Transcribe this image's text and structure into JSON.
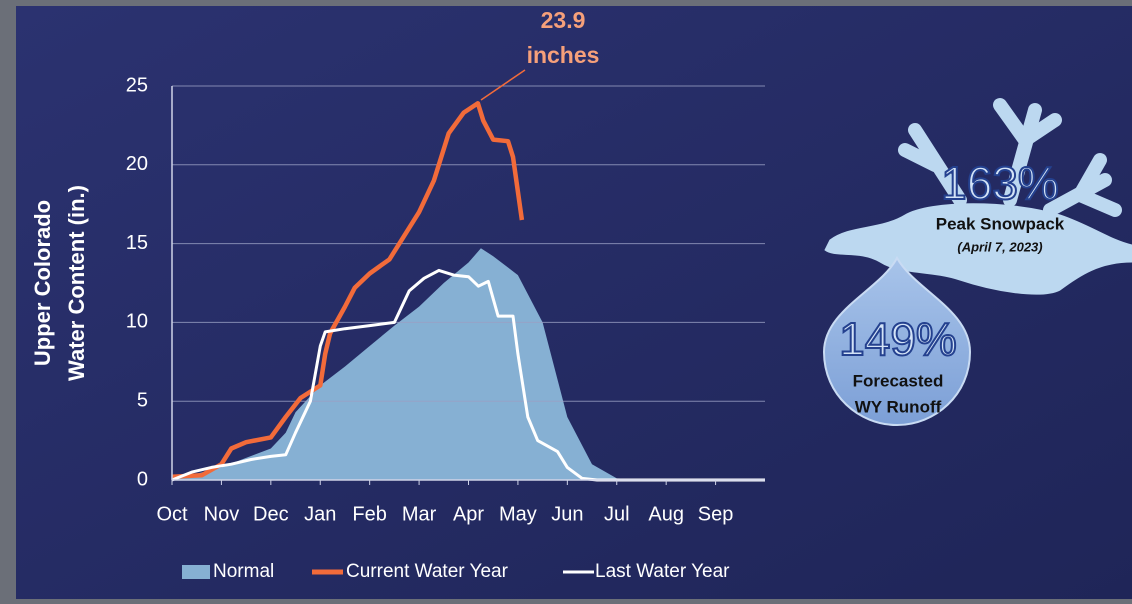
{
  "chart_data": {
    "type": "line",
    "ylabel": [
      "Upper Colorado",
      "Water Content (in.)"
    ],
    "annotation": [
      "23.9",
      "inches"
    ],
    "callouts": [
      {
        "value_text": "163%",
        "label": "Peak Snowpack",
        "note": "(April 7, 2023)"
      },
      {
        "value_text": "149%",
        "label": "Forecasted",
        "note": "WY Runoff"
      }
    ],
    "xlim": [
      0,
      12
    ],
    "xticks": [
      {
        "value": 0,
        "label": "Oct"
      },
      {
        "value": 1,
        "label": "Nov"
      },
      {
        "value": 2,
        "label": "Dec"
      },
      {
        "value": 3,
        "label": "Jan"
      },
      {
        "value": 4,
        "label": "Feb"
      },
      {
        "value": 5,
        "label": "Mar"
      },
      {
        "value": 6,
        "label": "Apr"
      },
      {
        "value": 7,
        "label": "May"
      },
      {
        "value": 8,
        "label": "Jun"
      },
      {
        "value": 9,
        "label": "Jul"
      },
      {
        "value": 10,
        "label": "Aug"
      },
      {
        "value": 11,
        "label": "Sep"
      }
    ],
    "ylim": [
      0,
      25
    ],
    "yticks": [
      0,
      5,
      10,
      15,
      20,
      25
    ],
    "grid": true,
    "series": [
      {
        "name": "Normal",
        "color": "#86b0d3",
        "style": "area",
        "x": [
          0,
          0.5,
          1,
          1.5,
          2,
          2.3,
          2.5,
          3,
          3.5,
          4,
          4.5,
          5,
          5.5,
          6,
          6.25,
          6.5,
          7,
          7.5,
          8,
          8.5,
          9,
          10,
          11,
          12
        ],
        "values": [
          0,
          0.4,
          0.8,
          1.4,
          2,
          3,
          4.3,
          6,
          7.2,
          8.5,
          9.8,
          11,
          12.5,
          13.8,
          14.7,
          14.2,
          13,
          10,
          4,
          1,
          0.1,
          0,
          0,
          0
        ]
      },
      {
        "name": "Current Water Year",
        "color": "#f26b3a",
        "style": "line",
        "x": [
          0,
          0.6,
          1,
          1.2,
          1.5,
          2,
          2.3,
          2.6,
          3,
          3.1,
          3.2,
          3.5,
          3.7,
          4,
          4.4,
          4.7,
          5,
          5.3,
          5.6,
          5.9,
          6.19,
          6.3,
          6.5,
          6.8,
          6.9,
          7.08
        ],
        "values": [
          0.2,
          0.3,
          1,
          2,
          2.4,
          2.7,
          4,
          5.2,
          6,
          8,
          9.3,
          11,
          12.2,
          13.1,
          14,
          15.5,
          17,
          19,
          22,
          23.3,
          23.9,
          22.8,
          21.6,
          21.5,
          20.5,
          16.5
        ]
      },
      {
        "name": "Last Water Year",
        "color": "#ffffff",
        "style": "line",
        "x": [
          0,
          0.4,
          0.8,
          1.2,
          1.6,
          2,
          2.3,
          2.5,
          2.8,
          3,
          3.1,
          3.5,
          4,
          4.5,
          4.8,
          5.1,
          5.4,
          5.7,
          6,
          6.2,
          6.4,
          6.5,
          6.6,
          6.9,
          7,
          7.2,
          7.4,
          7.8,
          8,
          8.3,
          8.6,
          12
        ],
        "values": [
          0,
          0.5,
          0.8,
          1,
          1.3,
          1.5,
          1.6,
          3,
          5,
          8.5,
          9.4,
          9.6,
          9.8,
          10,
          12,
          12.8,
          13.3,
          13,
          12.9,
          12.3,
          12.6,
          11.5,
          10.4,
          10.4,
          8,
          4,
          2.5,
          1.8,
          0.8,
          0.1,
          0,
          0
        ]
      }
    ]
  }
}
